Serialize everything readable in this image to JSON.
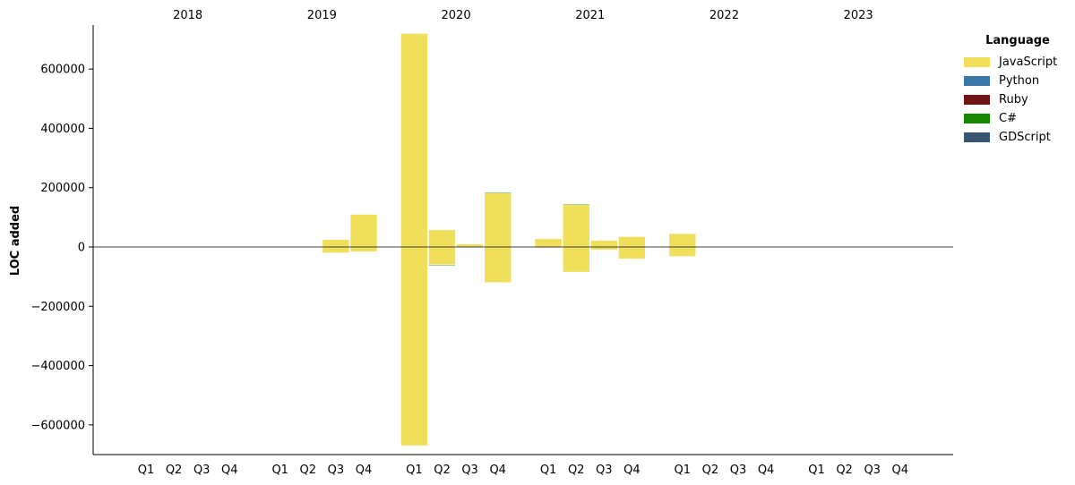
{
  "chart_data": {
    "type": "bar",
    "ylabel": "LOC added",
    "ylim": [
      -700000,
      750000
    ],
    "yticks": [
      600000,
      400000,
      200000,
      0,
      -200000,
      -400000,
      -600000
    ],
    "ytick_labels": [
      "600000",
      "400000",
      "200000",
      "0",
      "−200000",
      "−400000",
      "−600000"
    ],
    "years": [
      "2018",
      "2019",
      "2020",
      "2021",
      "2022",
      "2023"
    ],
    "quarters": [
      "Q1",
      "Q2",
      "Q3",
      "Q4"
    ],
    "stacked": true,
    "series": [
      {
        "name": "JavaScript",
        "color": "#efdf5a",
        "positive": [
          0,
          0,
          0,
          0,
          0,
          0,
          25000,
          110000,
          720000,
          58000,
          10000,
          182000,
          28000,
          143000,
          22000,
          35000,
          45000,
          0,
          0,
          0,
          0,
          0,
          0,
          0
        ],
        "negative": [
          0,
          0,
          0,
          0,
          0,
          0,
          -20000,
          -16000,
          -670000,
          -60000,
          0,
          -120000,
          -3000,
          -85000,
          -10000,
          -40000,
          -32000,
          0,
          0,
          0,
          0,
          0,
          0,
          0
        ]
      },
      {
        "name": "Python",
        "color": "#3b77a8",
        "positive": [
          0,
          0,
          0,
          0,
          0,
          0,
          0,
          0,
          0,
          0,
          0,
          0,
          0,
          0,
          0,
          0,
          0,
          0,
          0,
          0,
          0,
          0,
          0,
          0
        ],
        "negative": [
          0,
          0,
          0,
          0,
          0,
          0,
          0,
          0,
          0,
          0,
          0,
          0,
          0,
          0,
          0,
          0,
          0,
          0,
          0,
          0,
          0,
          0,
          0,
          0
        ]
      },
      {
        "name": "Ruby",
        "color": "#701516",
        "positive": [
          0,
          0,
          0,
          0,
          0,
          0,
          0,
          0,
          0,
          0,
          0,
          0,
          0,
          0,
          0,
          0,
          0,
          0,
          0,
          0,
          0,
          0,
          0,
          0
        ],
        "negative": [
          0,
          0,
          0,
          0,
          0,
          0,
          0,
          0,
          0,
          0,
          0,
          0,
          0,
          0,
          0,
          0,
          0,
          0,
          0,
          0,
          0,
          0,
          0,
          0
        ]
      },
      {
        "name": "C#",
        "color": "#178600",
        "positive": [
          0,
          0,
          0,
          0,
          0,
          0,
          0,
          0,
          0,
          0,
          0,
          3000,
          0,
          2500,
          0,
          0,
          0,
          0,
          0,
          0,
          0,
          0,
          0,
          0
        ],
        "negative": [
          0,
          0,
          0,
          0,
          0,
          0,
          0,
          0,
          0,
          -2500,
          0,
          0,
          0,
          0,
          0,
          0,
          0,
          0,
          0,
          0,
          0,
          0,
          0,
          0
        ]
      },
      {
        "name": "GDScript",
        "color": "#355570",
        "positive": [
          0,
          0,
          0,
          0,
          0,
          0,
          0,
          0,
          0,
          0,
          0,
          0,
          0,
          0,
          0,
          0,
          0,
          0,
          0,
          0,
          0,
          0,
          0,
          0
        ],
        "negative": [
          0,
          0,
          0,
          0,
          0,
          0,
          0,
          0,
          0,
          0,
          0,
          0,
          0,
          0,
          0,
          0,
          0,
          0,
          0,
          0,
          0,
          0,
          0,
          0
        ]
      }
    ],
    "legend": {
      "title": "Language",
      "placement": "top-right, outside plot"
    },
    "grid": false
  }
}
